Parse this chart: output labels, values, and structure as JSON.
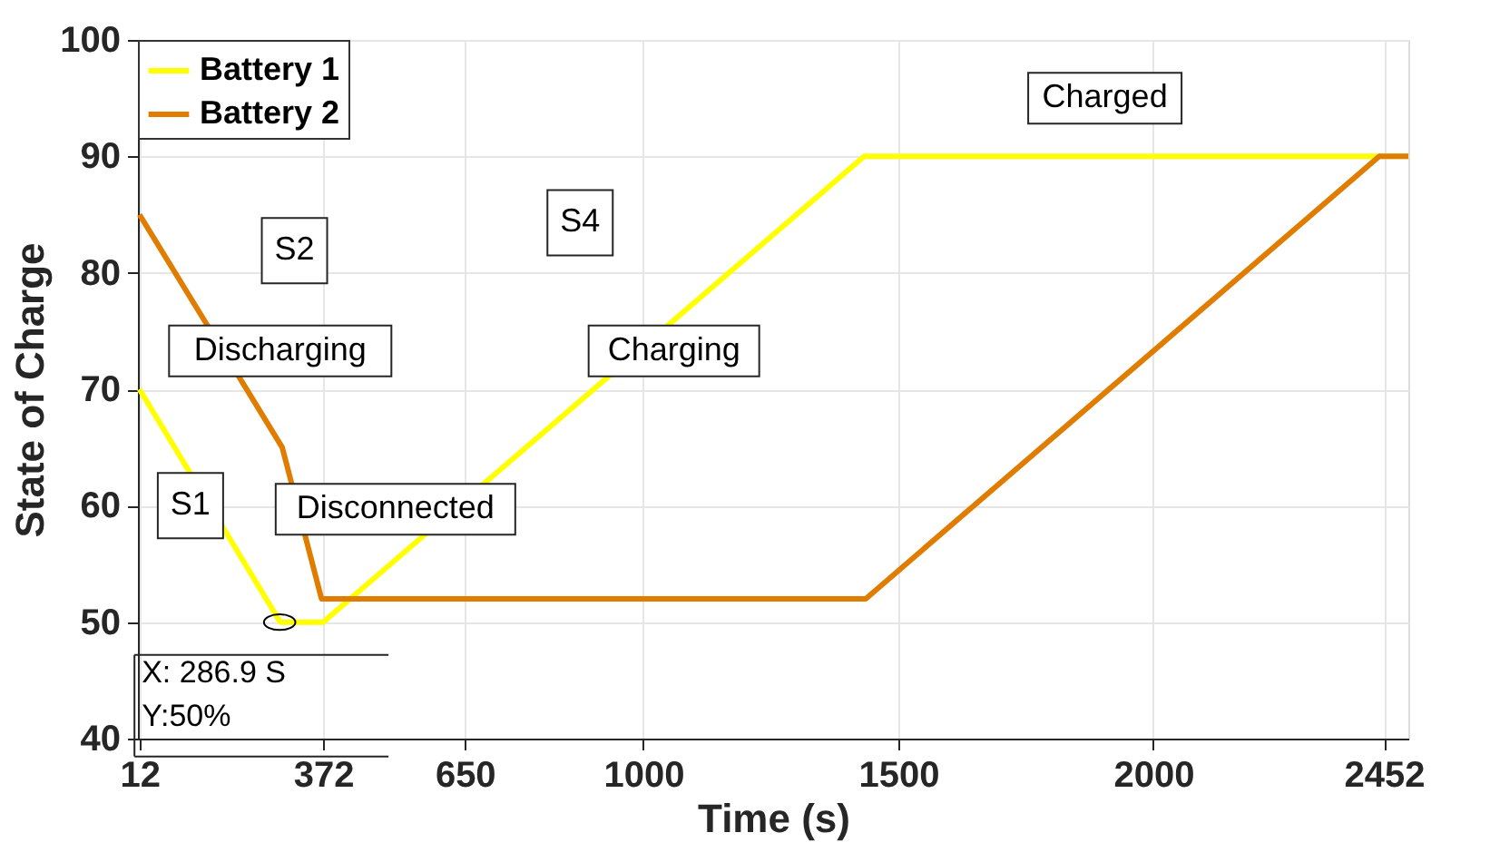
{
  "chart_data": {
    "type": "line",
    "xlabel": "Time (s)",
    "ylabel": "State of Charge",
    "xlim": [
      9,
      2500
    ],
    "xticks": [
      12,
      372,
      650,
      1000,
      1500,
      2000,
      2452
    ],
    "ylim": [
      40,
      100
    ],
    "yticks": [
      40,
      50,
      60,
      70,
      80,
      90,
      100
    ],
    "grid": true,
    "legend": "top left",
    "marker": "none",
    "line_style": "solid",
    "series": [
      {
        "name": "Battery 1",
        "color": "#ffff00",
        "x": [
          12,
          288,
          372,
          1433,
          2500
        ],
        "values": [
          70,
          50,
          50,
          90,
          90
        ]
      },
      {
        "name": "Battery 2",
        "color": "#e07c00",
        "x": [
          12,
          292,
          369,
          1436,
          2443,
          2500
        ],
        "values": [
          85,
          65,
          52,
          52,
          90,
          90
        ]
      }
    ],
    "annotations": [
      "S1",
      "S2",
      "Discharging",
      "Disconnected",
      "S4",
      "Charging",
      "Charged",
      {
        "text": "X: 286.9 S\nY:50%",
        "x": 286.9,
        "y": 50
      }
    ]
  }
}
